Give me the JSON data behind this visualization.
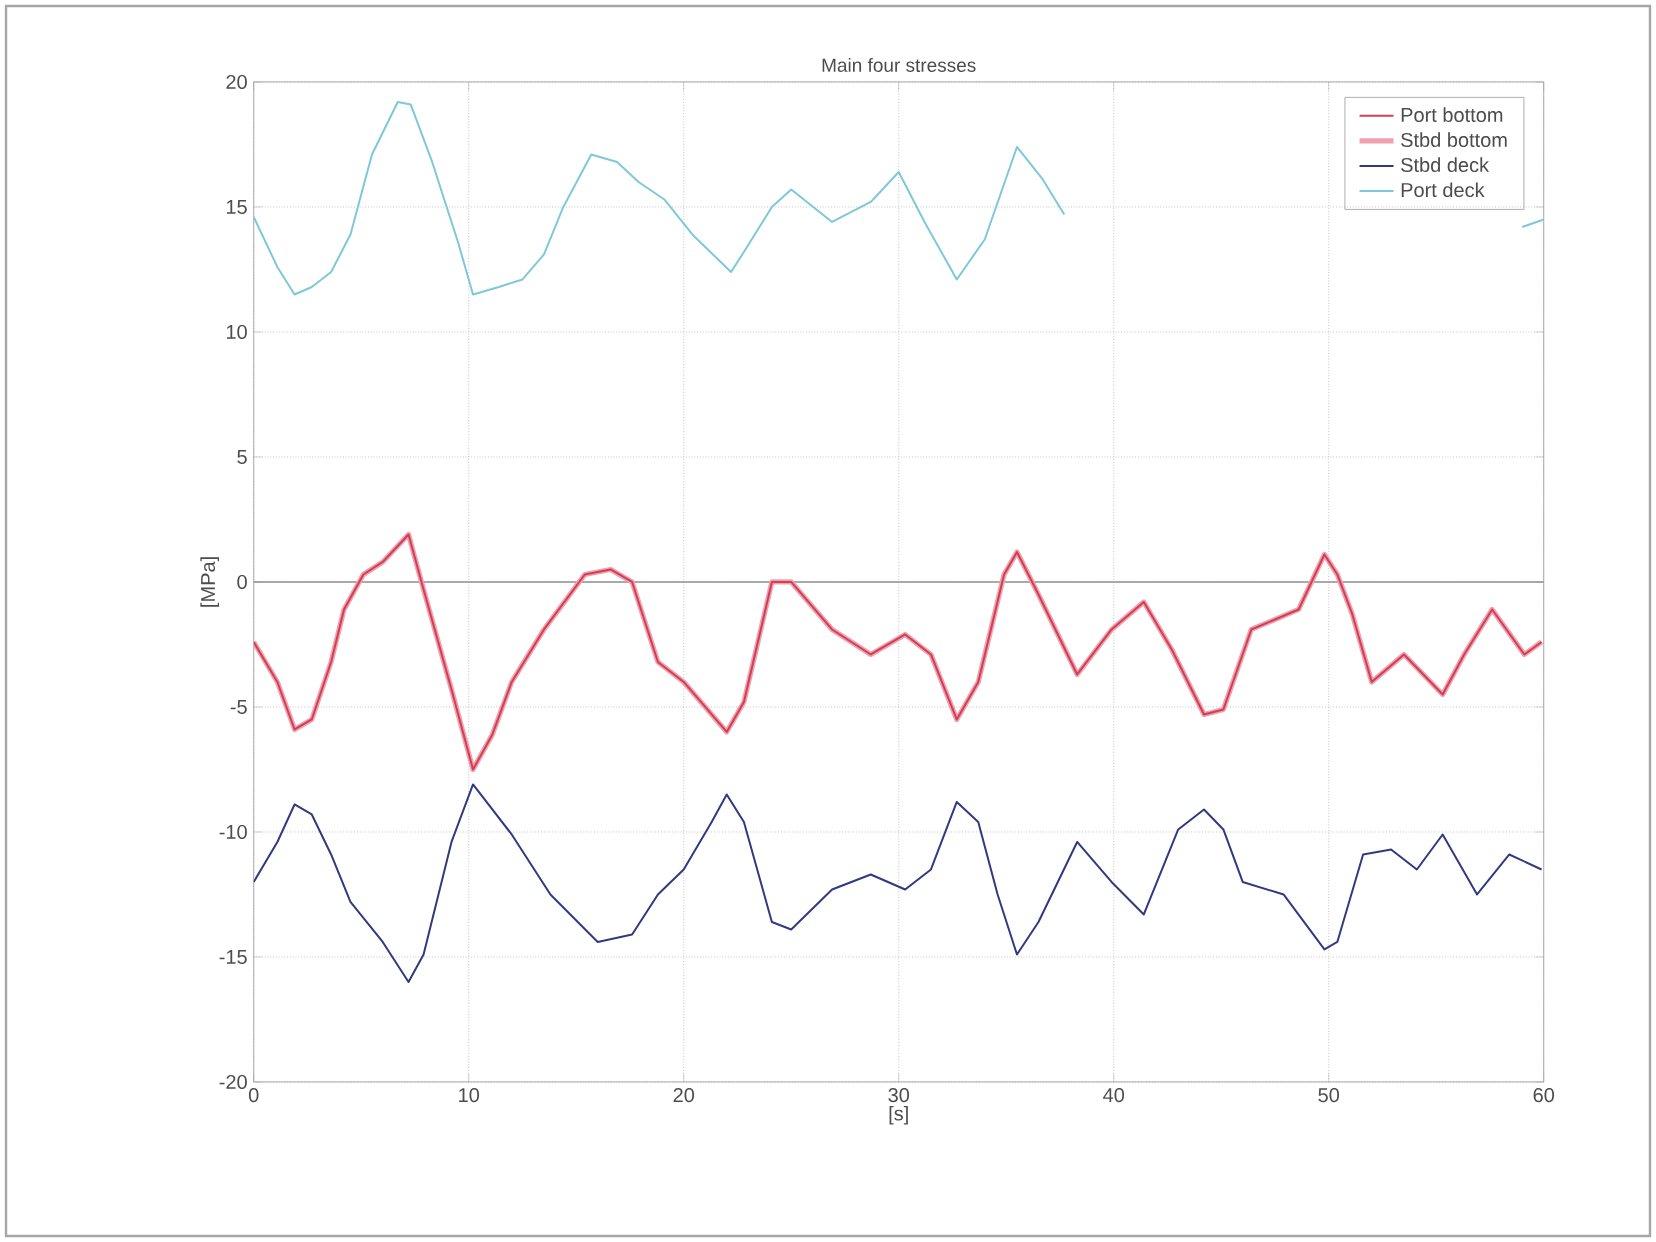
{
  "chart_data": {
    "type": "line",
    "title": "Main four stresses",
    "xlabel": "[s]",
    "ylabel": "[MPa]",
    "xlim": [
      0,
      60
    ],
    "xticks": [
      0,
      10,
      20,
      30,
      40,
      50,
      60
    ],
    "ylim": [
      -20,
      20
    ],
    "yticks": [
      -20,
      -15,
      -10,
      -5,
      0,
      5,
      10,
      15,
      20
    ],
    "grid": true,
    "legend": "top right",
    "line_style": "solid",
    "marker": "none",
    "ref_lines": [
      {
        "axis": "y",
        "value": 0,
        "color": "#909090"
      }
    ],
    "series": [
      {
        "name": "Port bottom",
        "color": "#d04050",
        "x": [
          0,
          1.1,
          1.9,
          2.7,
          3.6,
          4.2,
          5.1,
          6,
          7.2,
          7.9,
          9.2,
          10.2,
          11.1,
          12,
          13.5,
          15.4,
          16.6,
          17.6,
          18.8,
          20,
          21.3,
          22,
          22.8,
          24.1,
          25,
          26.9,
          28.7,
          30.3,
          31.5,
          32.7,
          33.7,
          34.9,
          35.5,
          36.5,
          38.3,
          39.9,
          41.4,
          42.7,
          44.2,
          45.1,
          46.4,
          48.6,
          49.8,
          50.4,
          51.1,
          52,
          53.5,
          55.3,
          56.3,
          57.6,
          59.1,
          59.9
        ],
        "values": [
          -2.4,
          -4.0,
          -5.9,
          -5.5,
          -3.2,
          -1.1,
          0.3,
          0.8,
          1.9,
          -0.3,
          -4.3,
          -7.5,
          -6.1,
          -4.0,
          -1.9,
          0.3,
          0.5,
          0,
          -3.2,
          -4.0,
          -5.3,
          -6.0,
          -4.8,
          0,
          0,
          -1.9,
          -2.9,
          -2.1,
          -2.9,
          -5.5,
          -4.0,
          0.3,
          1.2,
          -0.5,
          -3.7,
          -1.9,
          -0.8,
          -2.7,
          -5.3,
          -5.1,
          -1.9,
          -1.1,
          1.1,
          0.3,
          -1.3,
          -4.0,
          -2.9,
          -4.5,
          -2.9,
          -1.1,
          -2.9,
          -2.4
        ]
      },
      {
        "name": "Stbd bottom",
        "color": "#f0a0b0",
        "x": [
          0,
          1.1,
          1.9,
          2.7,
          3.6,
          4.2,
          5.1,
          6,
          7.2,
          7.9,
          9.2,
          10.2,
          11.1,
          12,
          13.5,
          15.4,
          16.6,
          17.6,
          18.8,
          20,
          21.3,
          22,
          22.8,
          24.1,
          25,
          26.9,
          28.7,
          30.3,
          31.5,
          32.7,
          33.7,
          34.9,
          35.5,
          36.5,
          38.3,
          39.9,
          41.4,
          42.7,
          44.2,
          45.1,
          46.4,
          48.6,
          49.8,
          50.4,
          51.1,
          52,
          53.5,
          55.3,
          56.3,
          57.6,
          59.1,
          59.9
        ],
        "values": [
          -2.4,
          -4.0,
          -5.9,
          -5.5,
          -3.2,
          -1.1,
          0.3,
          0.8,
          1.9,
          -0.3,
          -4.3,
          -7.5,
          -6.1,
          -4.0,
          -1.9,
          0.3,
          0.5,
          0,
          -3.2,
          -4.0,
          -5.3,
          -6.0,
          -4.8,
          0,
          0,
          -1.9,
          -2.9,
          -2.1,
          -2.9,
          -5.5,
          -4.0,
          0.3,
          1.2,
          -0.5,
          -3.7,
          -1.9,
          -0.8,
          -2.7,
          -5.3,
          -5.1,
          -1.9,
          -1.1,
          1.1,
          0.3,
          -1.3,
          -4.0,
          -2.9,
          -4.5,
          -2.9,
          -1.1,
          -2.9,
          -2.4
        ]
      },
      {
        "name": "Stbd deck",
        "color": "#303a80",
        "x": [
          0,
          1.1,
          1.9,
          2.7,
          3.6,
          4.5,
          6,
          7.2,
          7.9,
          9.2,
          10.2,
          12,
          13.8,
          16,
          17.6,
          18.8,
          20,
          21.3,
          22,
          22.8,
          24.1,
          25,
          26.9,
          28.7,
          30.3,
          31.5,
          32.7,
          33.7,
          34.6,
          35.5,
          36.5,
          38.3,
          39.9,
          41.4,
          43,
          44.2,
          45.1,
          46,
          47.9,
          49.8,
          50.4,
          51.6,
          52.9,
          54.1,
          55.3,
          56.9,
          58.4,
          59.9
        ],
        "values": [
          -12.0,
          -10.4,
          -8.9,
          -9.3,
          -10.9,
          -12.8,
          -14.4,
          -16.0,
          -14.9,
          -10.4,
          -8.1,
          -10.1,
          -12.5,
          -14.4,
          -14.1,
          -12.5,
          -11.5,
          -9.6,
          -8.5,
          -9.6,
          -13.6,
          -13.9,
          -12.3,
          -11.7,
          -12.3,
          -11.5,
          -8.8,
          -9.6,
          -12.5,
          -14.9,
          -13.6,
          -10.4,
          -12.0,
          -13.3,
          -9.9,
          -9.1,
          -9.9,
          -12.0,
          -12.5,
          -14.7,
          -14.4,
          -10.9,
          -10.7,
          -11.5,
          -10.1,
          -12.5,
          -10.9,
          -11.5
        ]
      },
      {
        "name": "Port deck",
        "color": "#7fc8d8",
        "x": [
          0,
          1.1,
          1.9,
          2.7,
          3.6,
          4.5,
          5.5,
          6.7,
          7.3,
          8.3,
          9.5,
          10.2,
          11.4,
          12.5,
          13.5,
          14.4,
          15.7,
          16.9,
          17.9,
          19.1,
          20.4,
          21.6,
          22.2,
          22.8,
          24.1,
          25,
          26.9,
          28.7,
          30,
          31.2,
          32.7,
          34,
          35.5,
          36.7,
          37.7,
          47,
          59,
          60
        ],
        "values": [
          14.6,
          12.6,
          11.5,
          11.8,
          12.4,
          13.9,
          17.1,
          19.2,
          19.1,
          16.8,
          13.6,
          11.5,
          11.8,
          12.1,
          13.1,
          15.0,
          17.1,
          16.8,
          16.0,
          15.3,
          13.9,
          12.9,
          12.4,
          13.2,
          15.0,
          15.7,
          14.4,
          15.2,
          16.4,
          14.4,
          12.1,
          13.7,
          17.4,
          16.1,
          14.7,
          null,
          14.2,
          14.5
        ]
      }
    ]
  }
}
